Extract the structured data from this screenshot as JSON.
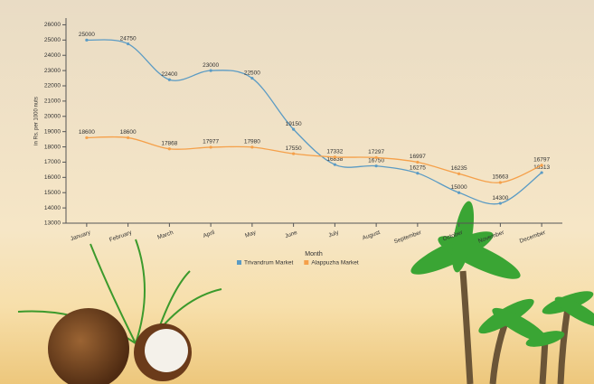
{
  "chart_data": {
    "type": "line",
    "x_label": "Month",
    "y_label": "in Rs. per 1000 nuts",
    "categories": [
      "January",
      "February",
      "March",
      "April",
      "May",
      "June",
      "July",
      "August",
      "September",
      "October",
      "November",
      "December"
    ],
    "series": [
      {
        "name": "Trivandrum Market",
        "color": "#5b9bc4",
        "values": [
          25000,
          24750,
          22400,
          23000,
          22500,
          19150,
          16838,
          16750,
          16275,
          15000,
          14300,
          16313
        ]
      },
      {
        "name": "Alappuzha Market",
        "color": "#f5a04a",
        "values": [
          18600,
          18600,
          17868,
          17977,
          17980,
          17550,
          17332,
          17297,
          16997,
          16235,
          15663,
          16797
        ]
      }
    ],
    "ylim": [
      13000,
      26500
    ],
    "yticks": [
      13000,
      14000,
      15000,
      16000,
      17000,
      18000,
      19000,
      20000,
      21000,
      22000,
      23000,
      24000,
      25000,
      26000
    ],
    "grid": false
  }
}
